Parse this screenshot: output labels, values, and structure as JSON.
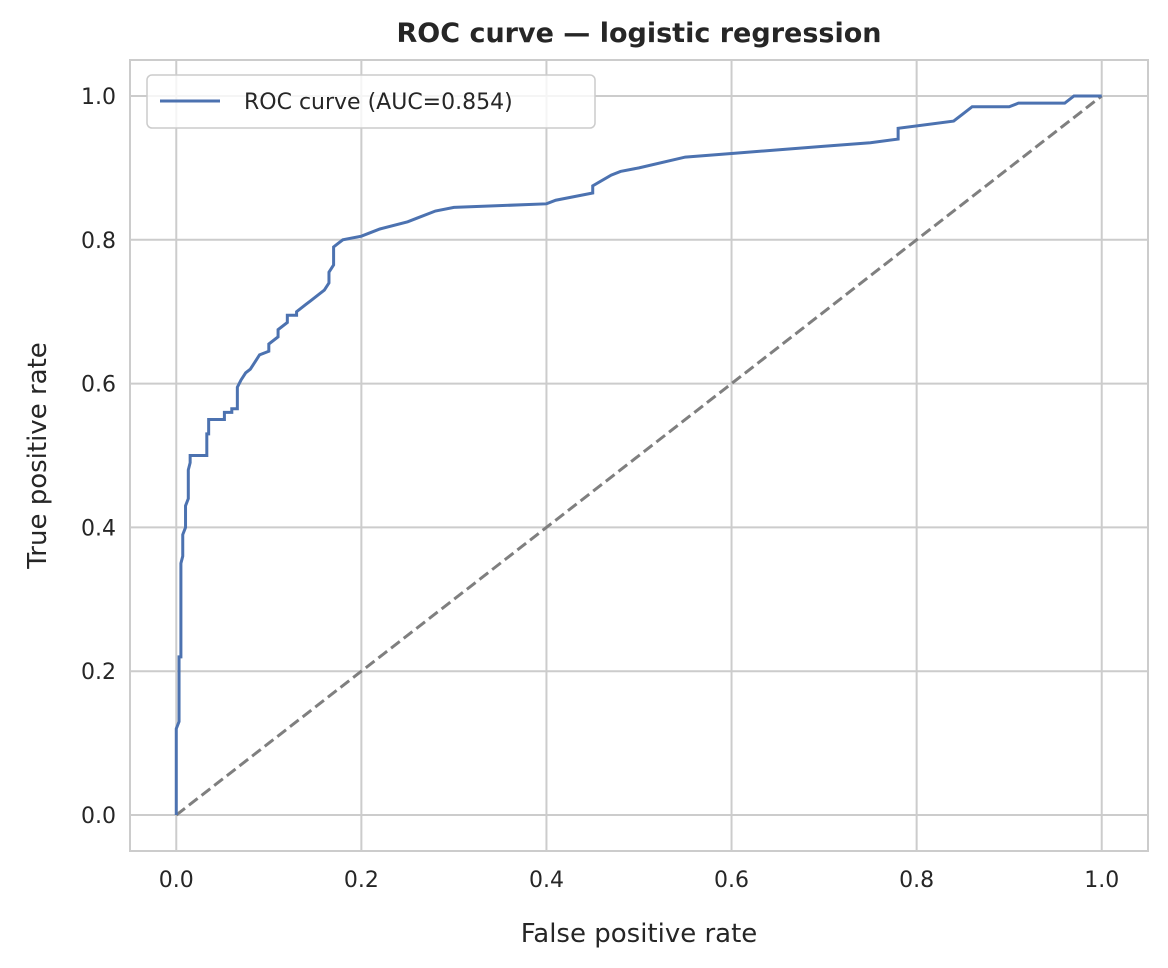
{
  "chart_data": {
    "type": "line",
    "title": "ROC curve — logistic regression",
    "xlabel": "False positive rate",
    "ylabel": "True positive rate",
    "xlim": [
      -0.05,
      1.05
    ],
    "ylim": [
      -0.05,
      1.05
    ],
    "xticks": [
      "0.0",
      "0.2",
      "0.4",
      "0.6",
      "0.8",
      "1.0"
    ],
    "yticks": [
      "0.0",
      "0.2",
      "0.4",
      "0.6",
      "0.8",
      "1.0"
    ],
    "grid": true,
    "legend_position": "upper-left",
    "series": [
      {
        "name": "ROC curve (AUC=0.854)",
        "color": "#4c72b0",
        "style": "solid",
        "x": [
          0.0,
          0.0,
          0.003,
          0.003,
          0.005,
          0.005,
          0.007,
          0.007,
          0.01,
          0.01,
          0.013,
          0.013,
          0.015,
          0.015,
          0.018,
          0.018,
          0.02,
          0.02,
          0.033,
          0.033,
          0.035,
          0.035,
          0.04,
          0.04,
          0.052,
          0.052,
          0.06,
          0.06,
          0.066,
          0.066,
          0.07,
          0.075,
          0.08,
          0.085,
          0.09,
          0.1,
          0.1,
          0.11,
          0.11,
          0.12,
          0.12,
          0.13,
          0.13,
          0.14,
          0.145,
          0.15,
          0.155,
          0.16,
          0.165,
          0.165,
          0.17,
          0.17,
          0.175,
          0.18,
          0.2,
          0.21,
          0.22,
          0.25,
          0.26,
          0.28,
          0.3,
          0.4,
          0.41,
          0.45,
          0.45,
          0.47,
          0.48,
          0.5,
          0.55,
          0.6,
          0.65,
          0.7,
          0.75,
          0.78,
          0.78,
          0.84,
          0.85,
          0.86,
          0.9,
          0.91,
          0.96,
          0.97,
          1.0
        ],
        "y": [
          0.0,
          0.12,
          0.13,
          0.22,
          0.22,
          0.35,
          0.36,
          0.39,
          0.4,
          0.43,
          0.44,
          0.48,
          0.49,
          0.5,
          0.5,
          0.5,
          0.5,
          0.5,
          0.5,
          0.53,
          0.53,
          0.55,
          0.55,
          0.55,
          0.55,
          0.56,
          0.56,
          0.565,
          0.565,
          0.595,
          0.605,
          0.615,
          0.62,
          0.63,
          0.64,
          0.645,
          0.655,
          0.665,
          0.675,
          0.685,
          0.695,
          0.695,
          0.7,
          0.71,
          0.715,
          0.72,
          0.725,
          0.73,
          0.74,
          0.755,
          0.765,
          0.79,
          0.795,
          0.8,
          0.805,
          0.81,
          0.815,
          0.825,
          0.83,
          0.84,
          0.845,
          0.85,
          0.855,
          0.865,
          0.875,
          0.89,
          0.895,
          0.9,
          0.915,
          0.92,
          0.925,
          0.93,
          0.935,
          0.94,
          0.955,
          0.965,
          0.975,
          0.985,
          0.985,
          0.99,
          0.99,
          1.0,
          1.0
        ]
      },
      {
        "name": "",
        "color": "#7f7f7f",
        "style": "dashed",
        "x": [
          0.0,
          1.0
        ],
        "y": [
          0.0,
          1.0
        ]
      }
    ]
  }
}
